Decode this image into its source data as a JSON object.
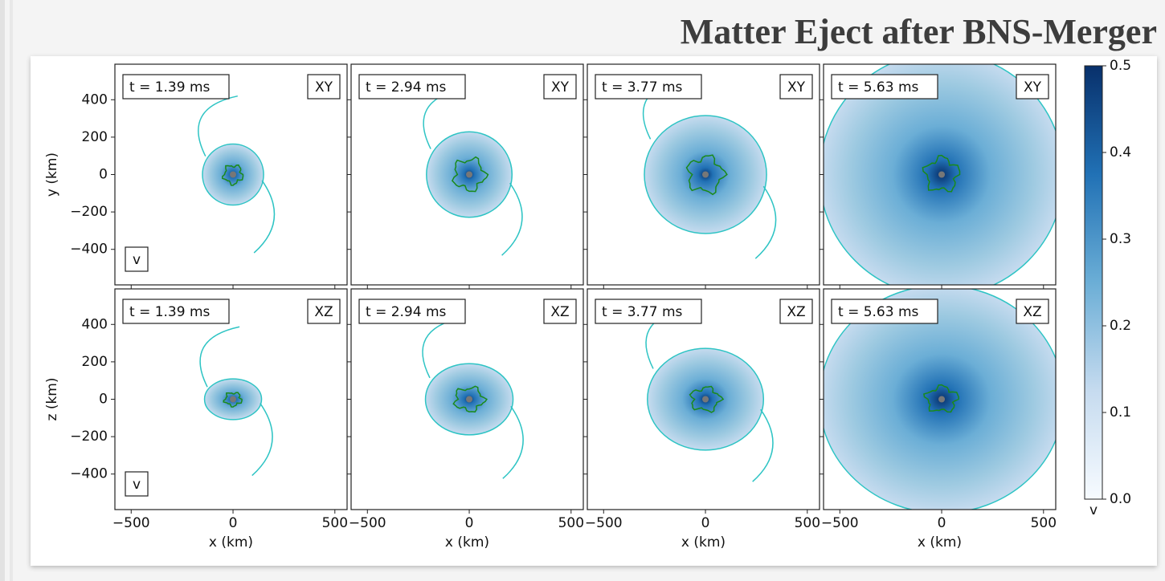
{
  "slide": {
    "title": "Matter Eject after BNS-Merger"
  },
  "figure": {
    "xlabel": "x (km)",
    "rows": [
      {
        "plane": "XY",
        "ylabel": "y (km)"
      },
      {
        "plane": "XZ",
        "ylabel": "z (km)"
      }
    ],
    "times": [
      "t = 1.39 ms",
      "t = 2.94 ms",
      "t = 3.77 ms",
      "t = 5.63 ms"
    ],
    "variable": "v",
    "xlim": [
      -580,
      560
    ],
    "xticks": [
      {
        "value": -500,
        "label": "−500"
      },
      0,
      500
    ],
    "ylim": [
      -590,
      590
    ],
    "yticks": [
      400,
      200,
      0,
      {
        "value": -200,
        "label": "−200"
      },
      {
        "value": -400,
        "label": "−400"
      }
    ],
    "colorbar": {
      "label": "v",
      "lim": [
        0,
        0.5
      ],
      "ticks": [
        {
          "value": 0,
          "label": "0.0"
        },
        0.1,
        0.2,
        0.3,
        0.4,
        0.5
      ]
    }
  }
}
